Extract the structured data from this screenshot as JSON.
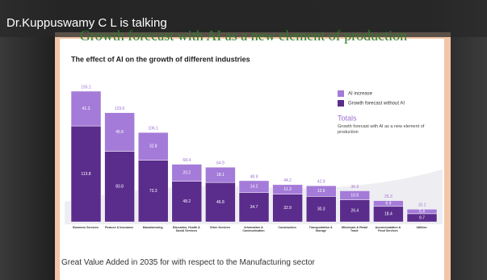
{
  "overlay": {
    "speaker_label": "Dr.Kuppuswamy C L is talking",
    "meeting_title": "Growth forecast with AI as a new element of production"
  },
  "slide": {
    "footer": "Great Value Added in 2035 for with respect to the Manufacturing sector"
  },
  "chart_data": {
    "type": "bar",
    "stacked": true,
    "title": "The effect of AI on the growth of different industries",
    "categories": [
      "Business Services",
      "Finance & Insurance",
      "Manufacturing",
      "Education, Health & Social Services",
      "Other Services",
      "Information & Communication",
      "Construction",
      "Transportation & Storage",
      "Wholesale & Retail Trade",
      "Accommodation & Food Services",
      "Utilities"
    ],
    "series": [
      {
        "name": "Growth forecast without AI",
        "color": "#5a2c8c",
        "values": [
          113.8,
          83.8,
          73.3,
          48.2,
          46.8,
          34.7,
          32.9,
          30.3,
          26.4,
          18.4,
          9.7
        ]
      },
      {
        "name": "AI increase",
        "color": "#a47bd8",
        "values": [
          41.3,
          45.8,
          32.8,
          20.2,
          18.1,
          14.2,
          11.3,
          12.6,
          10.5,
          6.9,
          5.4
        ]
      }
    ],
    "totals": [
      155.1,
      129.6,
      106.1,
      68.4,
      64.9,
      48.9,
      44.2,
      42.9,
      36.9,
      25.3,
      15.1
    ],
    "totals_title": "Totals",
    "totals_description": "Growth forecast with AI as a new element of production"
  }
}
